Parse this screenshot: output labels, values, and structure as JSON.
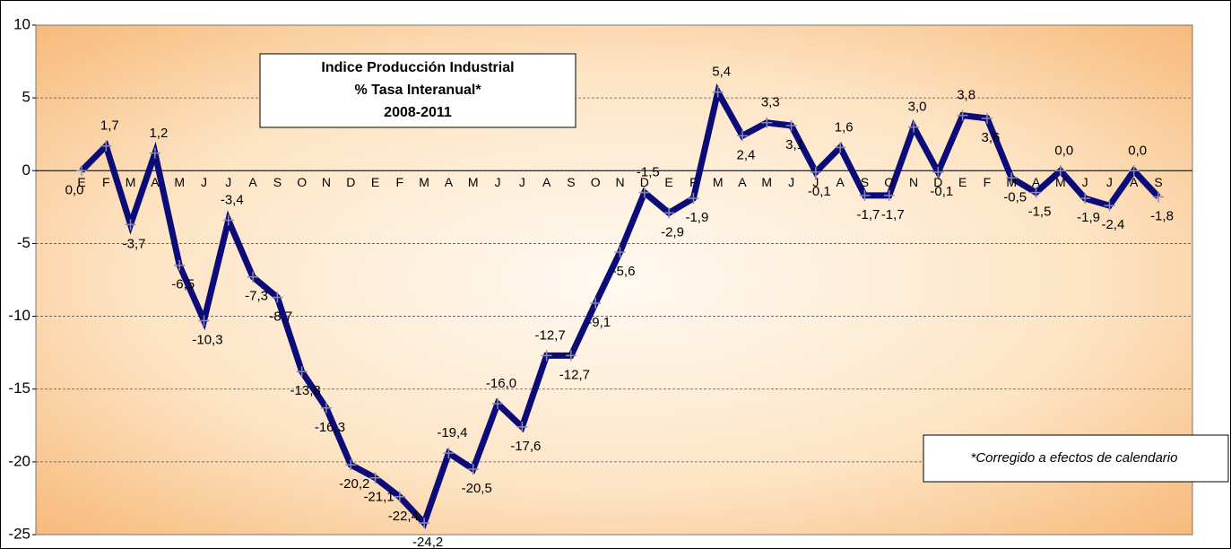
{
  "chart_data": {
    "type": "line",
    "title_lines": [
      "Indice Producción Industrial",
      "% Tasa Interanual*",
      "2008-2011"
    ],
    "note": "*Corregido a efectos de calendario",
    "categories": [
      "E",
      "F",
      "M",
      "A",
      "M",
      "J",
      "J",
      "A",
      "S",
      "O",
      "N",
      "D",
      "E",
      "F",
      "M",
      "A",
      "M",
      "J",
      "J",
      "A",
      "S",
      "O",
      "N",
      "D",
      "E",
      "F",
      "M",
      "A",
      "M",
      "J",
      "J",
      "A",
      "S",
      "O",
      "N",
      "D",
      "E",
      "F",
      "M",
      "A",
      "M",
      "J",
      "J",
      "A",
      "S"
    ],
    "values": [
      0.0,
      1.7,
      -3.7,
      1.2,
      -6.5,
      -10.3,
      -3.4,
      -7.3,
      -8.7,
      -13.8,
      -16.3,
      -20.2,
      -21.1,
      -22.4,
      -24.2,
      -19.4,
      -20.5,
      -16.0,
      -17.6,
      -12.7,
      -12.7,
      -9.1,
      -5.6,
      -1.5,
      -2.9,
      -1.9,
      5.4,
      2.4,
      3.3,
      3.1,
      -0.1,
      1.6,
      -1.7,
      -1.7,
      3.0,
      -0.1,
      3.8,
      3.6,
      -0.5,
      -1.5,
      0.0,
      -1.9,
      -2.4,
      0.0,
      -1.8
    ],
    "value_labels": [
      "0,0",
      "1,7",
      "-3,7",
      "1,2",
      "-6,5",
      "-10,3",
      "-3,4",
      "-7,3",
      "-8,7",
      "-13,8",
      "-16,3",
      "-20,2",
      "-21,1",
      "-22,4",
      "-24,2",
      "-19,4",
      "-20,5",
      "-16,0",
      "-17,6",
      "-12,7",
      "-12,7",
      "-9,1",
      "-5,6",
      "-1,5",
      "-2,9",
      "-1,9",
      "5,4",
      "2,4",
      "3,3",
      "3,1",
      "-0,1",
      "1,6",
      "-1,7",
      "-1,7",
      "3,0",
      "-0,1",
      "3,8",
      "3,6",
      "-0,5",
      "-1,5",
      "0,0",
      "-1,9",
      "-2,4",
      "0,0",
      "-1,8"
    ],
    "color": "#0c0c78",
    "ylim": [
      -25,
      10
    ],
    "yticks": [
      -25,
      -20,
      -15,
      -10,
      -5,
      0,
      5,
      10
    ],
    "grid": true
  }
}
